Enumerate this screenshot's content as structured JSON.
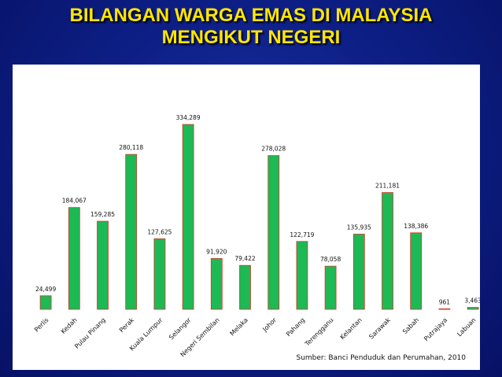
{
  "title_line1": "BILANGAN WARGA EMAS DI MALAYSIA",
  "title_line2": "MENGIKUT NEGERI",
  "source_label": "Sumber: Banci Penduduk dan Perumahan, 2010",
  "colors": {
    "bar_fill": "#1db954",
    "bar_edge": "#d9362b",
    "title": "#ffe600",
    "background": "#0d1f86"
  },
  "chart_data": {
    "type": "bar",
    "categories": [
      "Perlis",
      "Kedah",
      "Pulau Pinang",
      "Perak",
      "Kuala Lumpur",
      "Selangor",
      "Negeri Sembilan",
      "Melaka",
      "Johor",
      "Pahang",
      "Terengganu",
      "Kelantan",
      "Sarawak",
      "Sabah",
      "Putrajaya",
      "Labuan"
    ],
    "values": [
      24499,
      184067,
      159285,
      280118,
      127625,
      334289,
      91920,
      79422,
      278028,
      122719,
      78058,
      135935,
      211181,
      138386,
      961,
      3463
    ],
    "value_labels": [
      "24,499",
      "184,067",
      "159,285",
      "280,118",
      "127,625",
      "334,289",
      "91,920",
      "79,422",
      "278,028",
      "122,719",
      "78,058",
      "135,935",
      "211,181",
      "138,386",
      "961",
      "3,463"
    ],
    "ylim": [
      0,
      370000
    ],
    "grid": false,
    "legend": "none"
  }
}
